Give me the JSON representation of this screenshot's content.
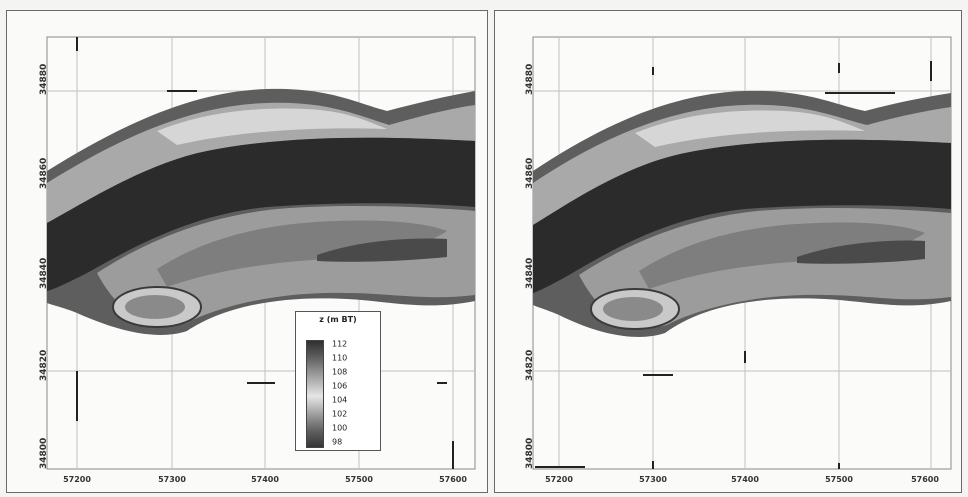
{
  "legend": {
    "title": "z (m BT)",
    "values": [
      "112",
      "110",
      "108",
      "106",
      "104",
      "102",
      "100",
      "98"
    ]
  },
  "panels": [
    {
      "id": "left",
      "y_ticks": [
        "34880",
        "34860",
        "34840",
        "34820",
        "34800"
      ],
      "x_ticks": [
        "57200",
        "57300",
        "57400",
        "57500",
        "57600"
      ]
    },
    {
      "id": "right",
      "y_ticks": [
        "34880",
        "34860",
        "34840",
        "34820",
        "34800"
      ],
      "x_ticks": [
        "57200",
        "57300",
        "57400",
        "57500",
        "57600"
      ]
    }
  ],
  "colors": {
    "deep_channel": "#2b2b2b",
    "bank": "#5e5e5e",
    "shallow": "#d8d8d8",
    "mid": "#9a9a9a",
    "grid": "#b8b8b8"
  }
}
